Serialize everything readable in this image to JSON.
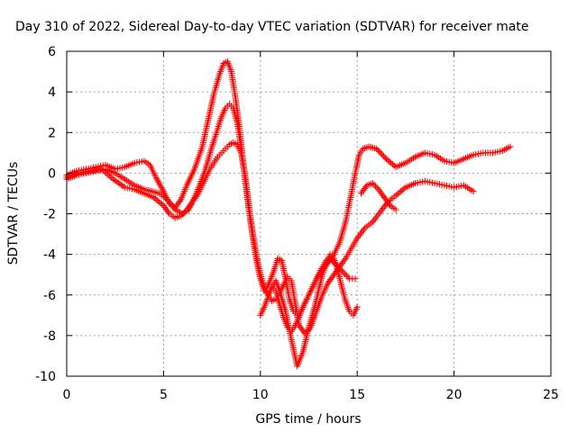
{
  "chart_data": {
    "type": "scatter",
    "title": "Day 310 of 2022, Sidereal Day-to-day VTEC variation (SDTVAR) for receiver mate",
    "xlabel": "GPS time / hours",
    "ylabel": "SDTVAR / TECUs",
    "xlim": [
      0,
      25
    ],
    "ylim": [
      -10,
      6
    ],
    "xticks": [
      "0",
      "5",
      "10",
      "15",
      "20",
      "25"
    ],
    "yticks": [
      "-10",
      "-8",
      "-6",
      "-4",
      "-2",
      "0",
      "2",
      "4",
      "6"
    ],
    "grid": true,
    "marker": "plus",
    "color": "#ff0000",
    "series": [
      {
        "x": [
          0.0,
          0.5,
          1.0,
          1.5,
          2.0,
          2.5,
          3.0,
          3.5,
          4.0,
          4.3,
          4.6,
          5.0,
          5.3,
          5.6,
          5.9,
          6.2,
          6.6,
          7.0,
          7.3,
          7.6,
          7.9,
          8.1,
          8.3,
          8.5,
          8.7,
          8.9,
          9.1,
          9.3,
          9.5,
          9.7,
          9.9,
          10.1,
          10.3,
          10.5,
          10.7,
          10.9,
          11.1,
          11.3,
          11.5,
          11.7,
          11.9,
          12.1,
          12.3,
          12.6,
          12.9,
          13.2,
          13.5,
          13.8,
          14.1,
          14.4,
          14.7,
          14.9,
          15.1,
          15.3,
          15.6,
          16.0,
          16.5,
          17.0,
          17.5,
          18.0,
          18.5,
          19.0,
          19.5,
          20.0,
          20.5,
          21.0,
          21.5,
          22.0,
          22.5,
          22.9
        ],
        "y": [
          -0.1,
          0.1,
          0.2,
          0.3,
          0.4,
          0.2,
          0.3,
          0.5,
          0.6,
          0.4,
          -0.2,
          -0.9,
          -1.5,
          -1.7,
          -1.3,
          -0.6,
          0.2,
          1.3,
          2.6,
          3.9,
          4.9,
          5.4,
          5.5,
          5.0,
          3.8,
          2.4,
          0.6,
          -1.0,
          -2.3,
          -3.5,
          -4.6,
          -5.4,
          -5.7,
          -5.3,
          -4.8,
          -4.2,
          -4.3,
          -5.2,
          -6.2,
          -6.8,
          -7.0,
          -6.8,
          -6.4,
          -5.8,
          -5.2,
          -4.8,
          -4.4,
          -4.0,
          -3.4,
          -2.4,
          -1.0,
          0.0,
          0.9,
          1.2,
          1.3,
          1.2,
          0.7,
          0.3,
          0.5,
          0.8,
          1.0,
          0.9,
          0.6,
          0.5,
          0.7,
          0.9,
          1.0,
          1.0,
          1.1,
          1.3
        ]
      },
      {
        "x": [
          0.0,
          0.5,
          1.0,
          1.5,
          2.0,
          2.5,
          3.0,
          3.5,
          4.0,
          4.4,
          4.8,
          5.2,
          5.6,
          6.0,
          6.3,
          6.6,
          6.9,
          7.2,
          7.5,
          7.8,
          8.0,
          8.2,
          8.4,
          8.6,
          8.8,
          9.0,
          9.2,
          9.4,
          9.6,
          9.8,
          10.0,
          10.2,
          10.4,
          10.6,
          10.8,
          11.0,
          11.2,
          11.4,
          11.6,
          11.8,
          12.0,
          12.2,
          12.5,
          12.8,
          13.1,
          13.4,
          13.7,
          14.0,
          14.3,
          14.6,
          14.9,
          15.2,
          15.5,
          15.8,
          16.1,
          16.4,
          16.7,
          17.0
        ],
        "y": [
          -0.3,
          -0.1,
          0.0,
          0.1,
          0.2,
          0.0,
          -0.3,
          -0.6,
          -0.8,
          -0.9,
          -1.0,
          -1.3,
          -1.8,
          -2.0,
          -1.8,
          -1.2,
          -0.5,
          0.3,
          1.3,
          2.2,
          2.8,
          3.2,
          3.4,
          3.2,
          2.5,
          1.3,
          -0.2,
          -1.8,
          -3.1,
          -4.3,
          -5.2,
          -5.8,
          -6.0,
          -5.6,
          -5.8,
          -6.5,
          -7.1,
          -7.6,
          -7.8,
          -7.5,
          -7.1,
          -6.6,
          -6.0,
          -5.4,
          -4.8,
          -4.3,
          -4.3,
          -4.6,
          -4.9,
          -5.2,
          -5.2,
          -1.0,
          -0.6,
          -0.5,
          -0.8,
          -1.2,
          -1.6,
          -1.8
        ]
      },
      {
        "x": [
          0.0,
          0.6,
          1.2,
          1.8,
          2.4,
          3.0,
          3.5,
          4.0,
          4.5,
          5.0,
          5.3,
          5.6,
          5.9,
          6.2,
          6.5,
          6.8,
          7.0,
          7.2,
          7.4,
          7.6,
          7.8,
          8.0,
          8.2,
          8.4,
          8.6,
          8.8,
          9.0,
          9.2,
          9.4,
          9.6,
          9.8,
          10.0,
          10.2,
          10.4,
          10.6,
          10.8,
          11.0,
          11.2,
          11.4,
          11.6,
          11.8,
          12.0,
          12.3,
          12.6,
          12.9,
          13.2,
          13.5,
          13.8,
          14.1,
          14.4,
          14.7,
          15.0,
          15.4,
          15.8,
          16.2,
          16.6,
          17.0,
          17.5,
          18.0,
          18.5,
          19.0,
          19.5,
          20.0,
          20.5,
          21.0
        ],
        "y": [
          -0.2,
          0.0,
          0.1,
          0.2,
          -0.3,
          -0.7,
          -0.8,
          -1.0,
          -1.2,
          -1.6,
          -2.0,
          -2.2,
          -2.1,
          -1.8,
          -1.4,
          -1.0,
          -0.6,
          -0.2,
          0.2,
          0.5,
          0.8,
          1.0,
          1.2,
          1.4,
          1.5,
          1.4,
          1.0,
          0.0,
          -1.5,
          -3.0,
          -4.2,
          -5.0,
          -5.6,
          -6.0,
          -6.3,
          -6.2,
          -5.9,
          -5.5,
          -5.1,
          -5.3,
          -6.4,
          -7.5,
          -7.9,
          -7.6,
          -6.8,
          -6.0,
          -5.4,
          -5.0,
          -4.6,
          -4.2,
          -3.7,
          -3.2,
          -2.7,
          -2.4,
          -1.9,
          -1.4,
          -1.1,
          -0.7,
          -0.5,
          -0.4,
          -0.5,
          -0.6,
          -0.7,
          -0.6,
          -0.9
        ]
      },
      {
        "x": [
          10.0,
          10.2,
          10.4,
          10.6,
          10.8,
          11.0,
          11.3,
          11.6,
          11.9,
          12.2,
          12.5,
          12.8,
          13.0,
          13.2,
          13.4,
          13.6,
          13.8,
          14.0,
          14.2,
          14.4,
          14.6,
          14.8,
          15.0
        ],
        "y": [
          -7.0,
          -6.6,
          -6.1,
          -5.6,
          -5.3,
          -5.8,
          -6.8,
          -8.2,
          -9.5,
          -8.8,
          -7.6,
          -6.6,
          -5.8,
          -5.0,
          -4.4,
          -4.0,
          -4.2,
          -4.8,
          -5.6,
          -6.3,
          -6.8,
          -7.0,
          -6.6
        ]
      }
    ]
  }
}
